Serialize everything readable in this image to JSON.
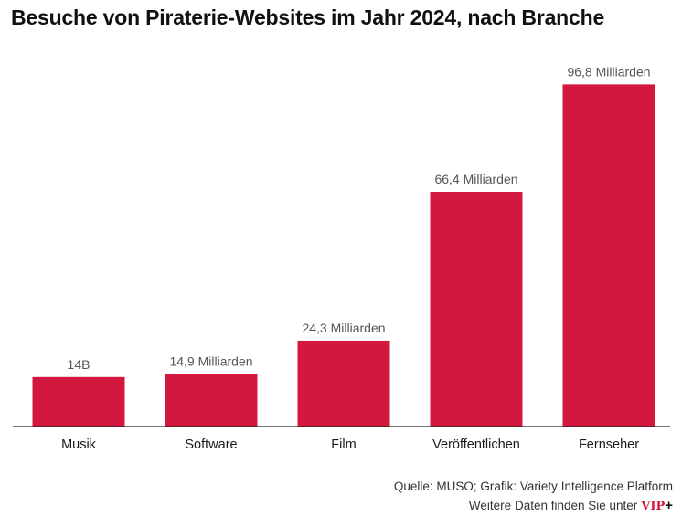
{
  "chart_data": {
    "type": "bar",
    "title": "Besuche von Piraterie-Websites im Jahr 2024, nach Branche",
    "categories": [
      "Musik",
      "Software",
      "Film",
      "Veröffentlichen",
      "Fernseher"
    ],
    "values": [
      14,
      14.9,
      24.3,
      66.4,
      96.8
    ],
    "data_labels": [
      "14B",
      "14,9 Milliarden",
      "24,3 Milliarden",
      "66,4 Milliarden",
      "96,8 Milliarden"
    ],
    "xlabel": "",
    "ylabel": "",
    "ylim": [
      0,
      100
    ],
    "grid": false,
    "legend": "none",
    "bar_color": "#d4173f"
  },
  "footer": {
    "source": "Quelle: MUSO; Grafik: Variety Intelligence Platform",
    "more_data": "Weitere Daten finden Sie unter",
    "vip_logo": "VIP",
    "vip_plus": "+"
  }
}
